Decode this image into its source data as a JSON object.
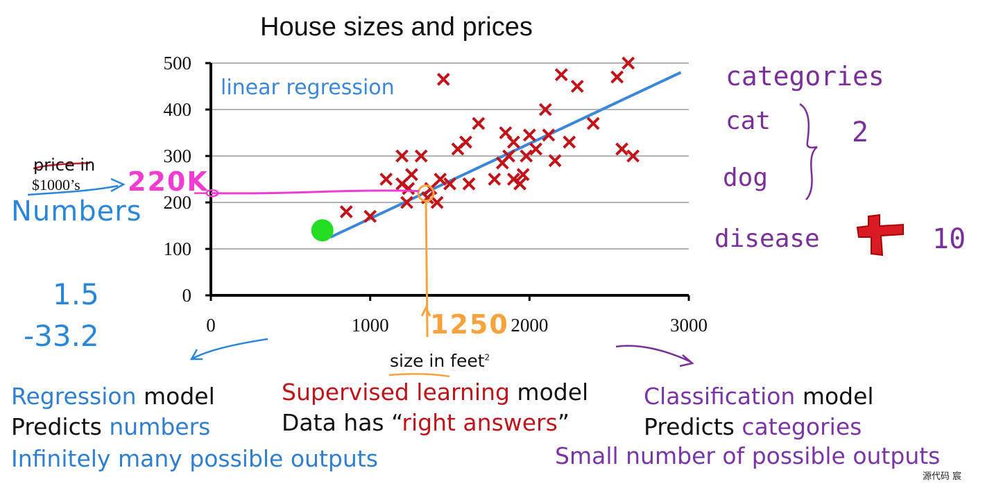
{
  "chart_data": {
    "type": "scatter",
    "title": "House sizes and prices",
    "xlabel": "size in feet",
    "xlabel_sup": "2",
    "ylabel_line1": "price in",
    "ylabel_line2": "$1000’s",
    "xlim": [
      0,
      3000
    ],
    "ylim": [
      0,
      500
    ],
    "x_ticks": [
      "0",
      "1000",
      "2000",
      "3000"
    ],
    "y_ticks": [
      "0",
      "100",
      "200",
      "300",
      "400",
      "500"
    ],
    "grid": true,
    "series": [
      {
        "name": "",
        "marker": "x",
        "color": "#c0141a",
        "points": [
          [
            850,
            180
          ],
          [
            1000,
            170
          ],
          [
            1100,
            250
          ],
          [
            1200,
            300
          ],
          [
            1200,
            240
          ],
          [
            1230,
            200
          ],
          [
            1260,
            260
          ],
          [
            1240,
            230
          ],
          [
            1320,
            300
          ],
          [
            1360,
            210
          ],
          [
            1380,
            230
          ],
          [
            1420,
            200
          ],
          [
            1440,
            250
          ],
          [
            1460,
            465
          ],
          [
            1500,
            240
          ],
          [
            1550,
            315
          ],
          [
            1600,
            330
          ],
          [
            1620,
            240
          ],
          [
            1680,
            370
          ],
          [
            1780,
            250
          ],
          [
            1830,
            285
          ],
          [
            1850,
            350
          ],
          [
            1870,
            300
          ],
          [
            1900,
            250
          ],
          [
            1900,
            330
          ],
          [
            1940,
            240
          ],
          [
            1960,
            260
          ],
          [
            1980,
            300
          ],
          [
            2000,
            345
          ],
          [
            2040,
            315
          ],
          [
            2100,
            400
          ],
          [
            2120,
            345
          ],
          [
            2160,
            290
          ],
          [
            2200,
            475
          ],
          [
            2250,
            330
          ],
          [
            2300,
            450
          ],
          [
            2400,
            370
          ],
          [
            2550,
            470
          ],
          [
            2580,
            315
          ],
          [
            2620,
            500
          ],
          [
            2650,
            300
          ]
        ]
      }
    ],
    "fit_line": {
      "label": "linear regression",
      "color": "#3b87d8",
      "x": [
        750,
        2950
      ],
      "y": [
        125,
        480
      ]
    },
    "highlight_point": {
      "x": 700,
      "y": 140,
      "color": "#22dd22"
    },
    "annotations": [
      {
        "text": "220K",
        "x": 1350,
        "y": 220,
        "color": "#f03cd0"
      },
      {
        "text": "1250",
        "x": 1350,
        "y": 220,
        "color": "#f7a23c"
      }
    ]
  },
  "annotations": {
    "numbers": "Numbers",
    "num1": "1.5",
    "num2": "-33.2",
    "k220": "220K",
    "n1250": "1250",
    "categories": "categories",
    "cat": "cat",
    "dog": "dog",
    "two": "2",
    "disease": "disease",
    "ten": "10"
  },
  "bottom": {
    "left": {
      "l1a": "Regression",
      "l1b": " model",
      "l2a": "Predicts ",
      "l2b": "numbers",
      "l3": "Infinitely many possible outputs"
    },
    "center": {
      "l1a": "Supervised learning",
      "l1b": " model",
      "l2a": "Data has “",
      "l2b": "right answers",
      "l2c": "”"
    },
    "right": {
      "l1a": "Classification",
      "l1b": " model",
      "l2a": "Predicts ",
      "l2b": "categories",
      "l3": "Small number of possible outputs"
    }
  },
  "watermark": "源代码    宸"
}
